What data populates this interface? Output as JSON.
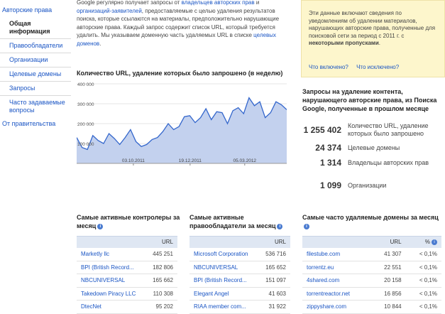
{
  "sidebar": {
    "items": [
      {
        "label": "Авторские права",
        "type": "top"
      },
      {
        "label": "Общая информация",
        "type": "active"
      },
      {
        "label": "Правообладатели",
        "type": "sub"
      },
      {
        "label": "Организации",
        "type": "sub"
      },
      {
        "label": "Целевые домены",
        "type": "sub"
      },
      {
        "label": "Запросы",
        "type": "sub"
      },
      {
        "label": "Часто задаваемые вопросы",
        "type": "sub"
      },
      {
        "label": "От правительства",
        "type": "gov"
      }
    ]
  },
  "intro": {
    "t1": "Google регулярно получает запросы от ",
    "link1": "владельцев авторских прав",
    "t2": " и ",
    "link2": "организаций-заявителей",
    "t3": ", предоставляемые с целью удаления результатов поиска, которые ссылаются на материалы, предположительно нарушающие авторские права. Каждый запрос содержит список URL, который требуется удалить. Мы указываем доменную часть удаляемых URL в списке ",
    "link3": "целевых доменов",
    "t4": "."
  },
  "info_box": {
    "text_a": "Эти данные включают сведения по уведомлениям об удалении материалов, нарушающих авторские права, полученные для поисковой сети за период с 2011 г. с ",
    "text_bold": "некоторыми пропусками",
    "text_b": ".",
    "link_included": "Что включено?",
    "link_excluded": "Что исключено?"
  },
  "chart_data": {
    "type": "area",
    "title": "Количество URL, удаление которых было запрошено (в неделю)",
    "y_ticks": [
      "400 000",
      "300 000",
      "200 000",
      "100 000"
    ],
    "x_ticks": [
      "03.10.2011",
      "19.12.2011",
      "05.03.2012"
    ],
    "ylim": [
      0,
      400000
    ],
    "color": "#3366cc",
    "fill": "#c3d1ee",
    "values": [
      130000,
      80000,
      70000,
      140000,
      115000,
      100000,
      150000,
      125000,
      95000,
      130000,
      170000,
      110000,
      85000,
      95000,
      120000,
      130000,
      160000,
      200000,
      170000,
      185000,
      235000,
      240000,
      205000,
      230000,
      275000,
      220000,
      260000,
      255000,
      200000,
      265000,
      280000,
      250000,
      330000,
      290000,
      310000,
      230000,
      255000,
      310000,
      295000,
      270000
    ]
  },
  "stats": {
    "title": "Запросы на удаление контента, нарушающего авторские права, из Поиска Google, полученные в прошлом месяце",
    "rows": [
      {
        "num": "1 255 402",
        "label": "Количество URL, удаление которых было запрошено"
      },
      {
        "num": "24 374",
        "label": "Целевые домены"
      },
      {
        "num": "1 314",
        "label": "Владельцы авторских прав"
      },
      {
        "num": "1 099",
        "label": "Организации"
      }
    ]
  },
  "tables": {
    "reporters": {
      "title": "Самые активные контролеры за месяц",
      "col": "URL",
      "rows": [
        {
          "name": "Marketly llc",
          "num": "445 251"
        },
        {
          "name": "BPI (British Record...",
          "num": "182 806"
        },
        {
          "name": "NBCUNIVERSAL",
          "num": "165 662"
        },
        {
          "name": "Takedown Piracy LLC",
          "num": "110 308"
        },
        {
          "name": "DtecNet",
          "num": "95 202"
        }
      ]
    },
    "owners": {
      "title": "Самые активные правообладатели за месяц",
      "col": "URL",
      "rows": [
        {
          "name": "Microsoft Corporation",
          "num": "536 716"
        },
        {
          "name": "NBCUNIVERSAL",
          "num": "165 652"
        },
        {
          "name": "BPI (British Record...",
          "num": "151 097"
        },
        {
          "name": "Elegant Angel",
          "num": "41 603"
        },
        {
          "name": "RIAA member com...",
          "num": "31 922"
        }
      ]
    },
    "domains": {
      "title": "Самые часто удаляемые домены за месяц",
      "col": "URL",
      "col2": "%",
      "rows": [
        {
          "name": "filestube.com",
          "num": "41 307",
          "pct": "< 0,1%"
        },
        {
          "name": "torrentz.eu",
          "num": "22 551",
          "pct": "< 0,1%"
        },
        {
          "name": "4shared.com",
          "num": "20 158",
          "pct": "< 0,1%"
        },
        {
          "name": "torrentreactor.net",
          "num": "16 856",
          "pct": "< 0,1%"
        },
        {
          "name": "zippyshare.com",
          "num": "10 844",
          "pct": "< 0,1%"
        }
      ]
    }
  }
}
